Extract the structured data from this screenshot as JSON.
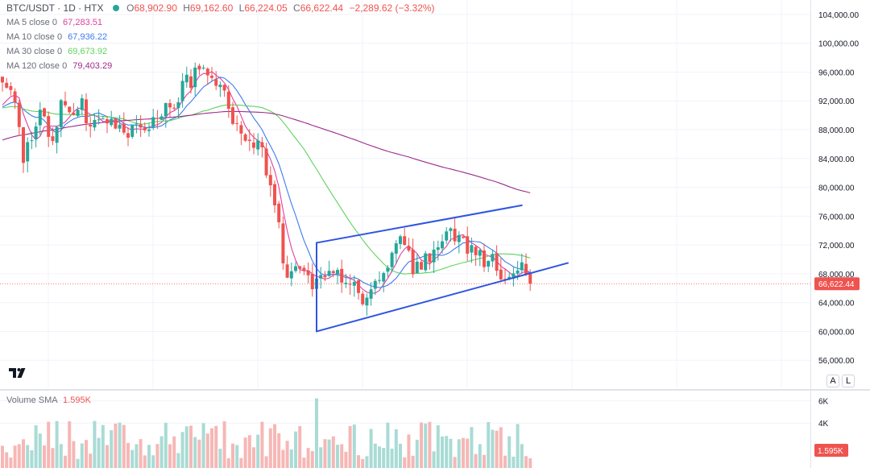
{
  "header": {
    "symbol": "BTC/USDT · 1D · HTX",
    "ohlc": {
      "o_label": "O",
      "o": "68,902.90",
      "h_label": "H",
      "h": "69,162.60",
      "l_label": "L",
      "l": "66,224.05",
      "c_label": "C",
      "c": "66,622.44",
      "change": "−2,289.62 (−3.32%)"
    },
    "indicators": [
      {
        "label": "MA 5 close 0",
        "value": "67,283.51",
        "color": "#e040a0"
      },
      {
        "label": "MA 10 close 0",
        "value": "67,936.22",
        "color": "#3d7bf0"
      },
      {
        "label": "MA 30 close 0",
        "value": "69,673.92",
        "color": "#5fd35f"
      },
      {
        "label": "MA 120 close 0",
        "value": "79,403.29",
        "color": "#9c2b8c"
      }
    ]
  },
  "volume": {
    "label": "Volume SMA",
    "value": "1.595K"
  },
  "price_scale_buttons": {
    "auto": "A",
    "log": "L"
  },
  "colors": {
    "up": "#26a69a",
    "down": "#ef5350",
    "trendline": "#2f55e0"
  },
  "icons": [
    "tradingview-logo-icon"
  ],
  "chart_data": [
    {
      "type": "candlestick",
      "title": "BTC/USDT · 1D · HTX",
      "ylim": [
        52000,
        106000
      ],
      "y_ticks": [
        56000,
        60000,
        64000,
        68000,
        72000,
        76000,
        80000,
        84000,
        88000,
        92000,
        96000,
        100000,
        104000
      ],
      "y_tick_labels": [
        "56,000.00",
        "60,000.00",
        "64,000.00",
        "68,000.00",
        "72,000.00",
        "76,000.00",
        "80,000.00",
        "84,000.00",
        "88,000.00",
        "92,000.00",
        "96,000.00",
        "100,000.00",
        "104,000.00"
      ],
      "last_price": 66622.44,
      "last_price_label": "66,622.44",
      "grid": true,
      "anchors": [
        [
          0,
          95500
        ],
        [
          3,
          93000
        ],
        [
          5,
          84000
        ],
        [
          7,
          87000
        ],
        [
          9,
          91500
        ],
        [
          12,
          86000
        ],
        [
          14,
          91000
        ],
        [
          17,
          90000
        ],
        [
          19,
          92000
        ],
        [
          21,
          88000
        ],
        [
          24,
          90500
        ],
        [
          27,
          88000
        ],
        [
          30,
          87500
        ],
        [
          34,
          88500
        ],
        [
          37,
          90000
        ],
        [
          40,
          91000
        ],
        [
          43,
          94000
        ],
        [
          46,
          95500
        ],
        [
          48,
          97500
        ],
        [
          51,
          95000
        ],
        [
          54,
          91000
        ],
        [
          57,
          88000
        ],
        [
          60,
          86000
        ],
        [
          62,
          85000
        ],
        [
          64,
          80000
        ],
        [
          66,
          74000
        ],
        [
          68,
          67000
        ],
        [
          70,
          70000
        ],
        [
          72,
          68500
        ],
        [
          74,
          66000
        ],
        [
          77,
          68500
        ],
        [
          80,
          67500
        ],
        [
          83,
          66500
        ],
        [
          86,
          64500
        ],
        [
          89,
          66000
        ],
        [
          92,
          69000
        ],
        [
          95,
          73000
        ],
        [
          98,
          69000
        ],
        [
          101,
          70000
        ],
        [
          104,
          72000
        ],
        [
          107,
          73500
        ],
        [
          109,
          72500
        ],
        [
          112,
          71500
        ],
        [
          115,
          70000
        ],
        [
          118,
          69500
        ],
        [
          120,
          67000
        ],
        [
          122,
          67500
        ],
        [
          124,
          68500
        ],
        [
          126,
          66622
        ]
      ],
      "series": [
        {
          "name": "MA 5 close 0",
          "color": "#e040a0",
          "last": 67283.51
        },
        {
          "name": "MA 10 close 0",
          "color": "#3d7bf0",
          "last": 67936.22
        },
        {
          "name": "MA 30 close 0",
          "color": "#5fd35f",
          "last": 69673.92
        },
        {
          "name": "MA 120 close 0",
          "color": "#9c2b8c",
          "last": 79403.29
        }
      ],
      "trendlines": [
        {
          "x1": 75,
          "y1": 72300,
          "x2": 124,
          "y2": 77500
        },
        {
          "x1": 75,
          "y1": 60000,
          "x2": 135,
          "y2": 69500
        },
        {
          "x1": 75,
          "y1": 72300,
          "x2": 75,
          "y2": 60000
        }
      ]
    },
    {
      "type": "bar",
      "title": "Volume SMA",
      "ylim": [
        0,
        6600
      ],
      "y_ticks": [
        4000,
        6000
      ],
      "y_tick_labels": [
        "4K",
        "6K"
      ],
      "last_value_label": "1.595K",
      "typical_range": [
        800,
        4200
      ],
      "spike": {
        "x": 75,
        "value": 6200
      }
    }
  ]
}
